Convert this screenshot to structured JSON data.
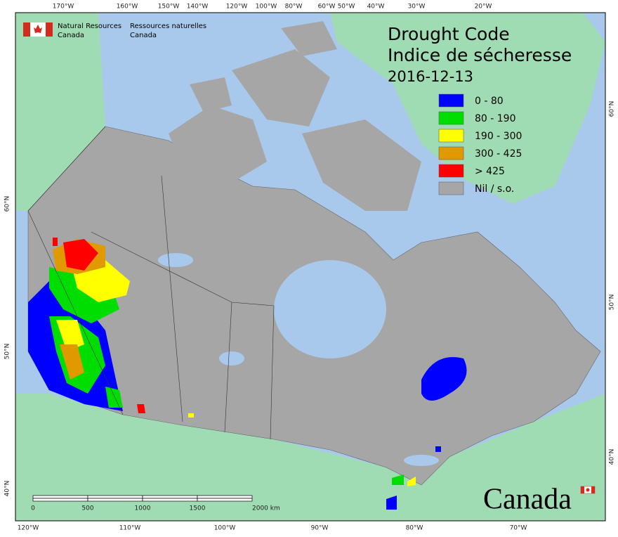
{
  "header": {
    "en": [
      "Natural Resources",
      "Canada"
    ],
    "fr": [
      "Ressources naturelles",
      "Canada"
    ]
  },
  "title": {
    "en": "Drought Code",
    "fr": "Indice de sécheresse",
    "date": "2016-12-13"
  },
  "legend": [
    {
      "label": "0 - 80",
      "color": "#0000ff"
    },
    {
      "label": "80 - 190",
      "color": "#00dd00"
    },
    {
      "label": "190 - 300",
      "color": "#ffff00"
    },
    {
      "label": "300 - 425",
      "color": "#e09a00"
    },
    {
      "label": "> 425",
      "color": "#ff0000"
    },
    {
      "label": "Nil / s.o.",
      "color": "#a6a6a6"
    }
  ],
  "graticule": {
    "top": [
      "170°W",
      "160°W",
      "150°W",
      "140°W",
      "120°W",
      "100°W",
      "80°W",
      "60°W",
      "50°W",
      "40°W",
      "30°W",
      "20°W"
    ],
    "bottom": [
      "120°W",
      "110°W",
      "100°W",
      "90°W",
      "80°W",
      "70°W"
    ],
    "left": [
      "60°N",
      "50°N",
      "40°N"
    ],
    "right": [
      "60°N",
      "50°N",
      "40°N"
    ]
  },
  "scale_bar": [
    "0",
    "500",
    "1000",
    "1500",
    "2000 km"
  ],
  "wordmark": "Canada"
}
